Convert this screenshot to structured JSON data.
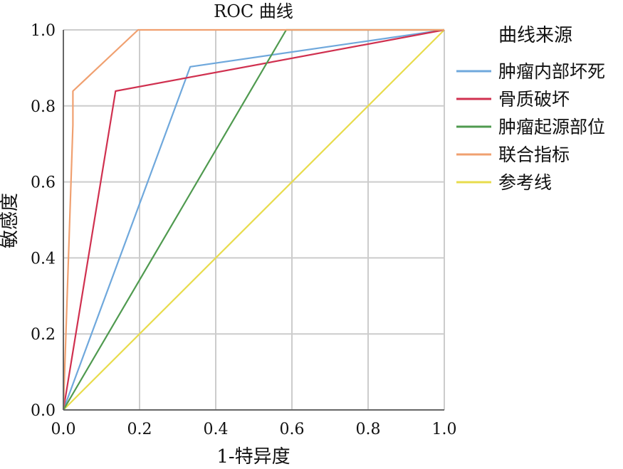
{
  "chart_data": {
    "type": "line",
    "title": "ROC 曲线",
    "xlabel": "1-特异度",
    "ylabel": "敏感度",
    "xlim": [
      0,
      1
    ],
    "ylim": [
      0,
      1
    ],
    "x_ticks": [
      "0.0",
      "0.2",
      "0.4",
      "0.6",
      "0.8",
      "1.0"
    ],
    "y_ticks": [
      "0.0",
      "0.2",
      "0.4",
      "0.6",
      "0.8",
      "1.0"
    ],
    "grid": true,
    "legend": {
      "title": "曲线来源",
      "placement": "right"
    },
    "series": [
      {
        "name": "肿瘤内部坏死",
        "color": "#6fa8dc",
        "points": [
          [
            0,
            0
          ],
          [
            0.333,
            0.903
          ],
          [
            1,
            1
          ]
        ]
      },
      {
        "name": "骨质破坏",
        "color": "#d0304f",
        "points": [
          [
            0,
            0
          ],
          [
            0.137,
            0.839
          ],
          [
            1,
            1
          ]
        ]
      },
      {
        "name": "肿瘤起源部位",
        "color": "#4f9a4f",
        "points": [
          [
            0,
            0
          ],
          [
            0.585,
            1
          ],
          [
            1,
            1
          ]
        ]
      },
      {
        "name": "联合指标",
        "color": "#f0a070",
        "points": [
          [
            0,
            0
          ],
          [
            0.025,
            0.75
          ],
          [
            0.025,
            0.839
          ],
          [
            0.196,
            1
          ],
          [
            1,
            1
          ]
        ]
      },
      {
        "name": "参考线",
        "color": "#e8dc4c",
        "points": [
          [
            0,
            0
          ],
          [
            1,
            1
          ]
        ]
      }
    ]
  }
}
